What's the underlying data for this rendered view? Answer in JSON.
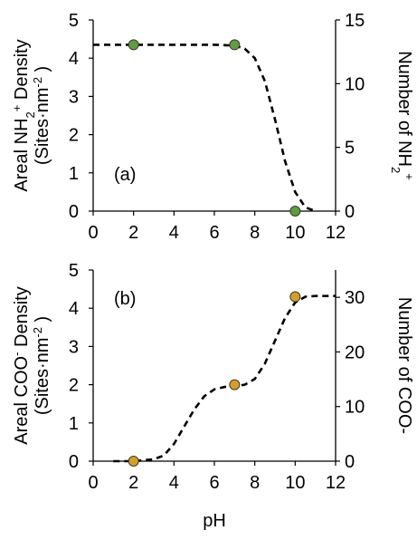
{
  "chart_data": [
    {
      "type": "scatter",
      "panel_label": "(a)",
      "xlabel": "",
      "ylabel": "Areal NH2+ Density (Sites·nm-2 )",
      "ylabel_line1": {
        "base": "Areal NH",
        "sub": "2",
        "sup": "+",
        "tail": " Density"
      },
      "ylabel_line2": {
        "text": "(Sites·nm",
        "sup": "-2",
        "tail": " )"
      },
      "y2label": {
        "base": "Number of NH",
        "sub": "2",
        "sup": "+"
      },
      "xlim": [
        0,
        12
      ],
      "ylim": [
        0,
        5
      ],
      "y2lim": [
        0,
        15
      ],
      "xticks": [
        "0",
        "2",
        "4",
        "6",
        "8",
        "10",
        "12"
      ],
      "yticks": [
        "0",
        "1",
        "2",
        "3",
        "4",
        "5"
      ],
      "y2ticks": [
        "0",
        "5",
        "10",
        "15"
      ],
      "points": {
        "x": [
          2,
          7,
          10
        ],
        "y": [
          4.35,
          4.35,
          0
        ],
        "color": "#5e9e3c"
      },
      "curve": {
        "style": "dashed",
        "color": "#000000",
        "x": [
          0,
          2,
          4,
          6,
          7,
          7.5,
          8,
          8.5,
          9,
          9.5,
          10,
          10.5,
          11
        ],
        "y": [
          4.35,
          4.35,
          4.35,
          4.35,
          4.33,
          4.25,
          4.0,
          3.4,
          2.4,
          1.3,
          0.5,
          0.1,
          0
        ]
      },
      "grid": false
    },
    {
      "type": "scatter",
      "panel_label": "(b)",
      "xlabel": "pH",
      "ylabel": "Areal COO- Density (Sites·nm-2 )",
      "ylabel_line1": {
        "base": "Areal COO",
        "sup": "-",
        "tail": " Density"
      },
      "ylabel_line2": {
        "text": "(Sites·nm",
        "sup": "-2",
        "tail": " )"
      },
      "y2label": {
        "base": "Number of COO-"
      },
      "xlim": [
        0,
        12
      ],
      "ylim": [
        0,
        5
      ],
      "y2lim": [
        0,
        35
      ],
      "xticks": [
        "0",
        "2",
        "4",
        "6",
        "8",
        "10",
        "12"
      ],
      "yticks": [
        "0",
        "1",
        "2",
        "3",
        "4",
        "5"
      ],
      "y2ticks": [
        "0",
        "10",
        "20",
        "30"
      ],
      "points": {
        "x": [
          2,
          7,
          10
        ],
        "y": [
          0,
          2.0,
          4.3
        ],
        "color": "#d4a020"
      },
      "curve": {
        "style": "dashed",
        "color": "#000000",
        "x": [
          1,
          2,
          3,
          3.5,
          4,
          4.5,
          5,
          5.5,
          6,
          6.5,
          7,
          7.5,
          8,
          8.5,
          9,
          9.5,
          10,
          10.5,
          11,
          12
        ],
        "y": [
          0,
          0,
          0.05,
          0.15,
          0.45,
          0.9,
          1.35,
          1.7,
          1.88,
          1.94,
          1.96,
          2.0,
          2.15,
          2.55,
          3.15,
          3.75,
          4.15,
          4.3,
          4.32,
          4.32
        ]
      },
      "grid": false
    }
  ]
}
